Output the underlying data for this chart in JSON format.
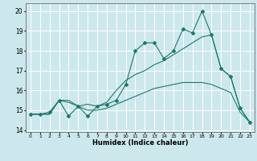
{
  "xlabel": "Humidex (Indice chaleur)",
  "ylabel": "",
  "bg_color": "#cde8ec",
  "grid_color": "#ffffff",
  "line_color": "#1a7a6e",
  "xlim": [
    -0.5,
    23.5
  ],
  "ylim": [
    13.9,
    20.4
  ],
  "yticks": [
    14,
    15,
    16,
    17,
    18,
    19,
    20
  ],
  "xticks": [
    0,
    1,
    2,
    3,
    4,
    5,
    6,
    7,
    8,
    9,
    10,
    11,
    12,
    13,
    14,
    15,
    16,
    17,
    18,
    19,
    20,
    21,
    22,
    23
  ],
  "series1_x": [
    0,
    1,
    2,
    3,
    4,
    5,
    6,
    7,
    8,
    9,
    10,
    11,
    12,
    13,
    14,
    15,
    16,
    17,
    18,
    19,
    20,
    21,
    22,
    23
  ],
  "series1_y": [
    14.8,
    14.8,
    14.9,
    15.5,
    14.7,
    15.2,
    14.7,
    15.2,
    15.3,
    15.5,
    16.3,
    18.0,
    18.4,
    18.4,
    17.6,
    18.0,
    19.1,
    18.9,
    20.0,
    18.8,
    17.1,
    16.7,
    15.1,
    14.4
  ],
  "series2_x": [
    0,
    1,
    2,
    3,
    4,
    5,
    6,
    7,
    8,
    9,
    10,
    11,
    12,
    13,
    14,
    15,
    16,
    17,
    18,
    19,
    20,
    21,
    22,
    23
  ],
  "series2_y": [
    14.8,
    14.8,
    14.8,
    15.5,
    15.5,
    15.2,
    15.3,
    15.2,
    15.4,
    16.0,
    16.5,
    16.8,
    17.0,
    17.3,
    17.5,
    17.8,
    18.1,
    18.4,
    18.7,
    18.8,
    17.1,
    16.7,
    15.1,
    14.4
  ],
  "series3_x": [
    0,
    1,
    2,
    3,
    4,
    5,
    6,
    7,
    8,
    9,
    10,
    11,
    12,
    13,
    14,
    15,
    16,
    17,
    18,
    19,
    20,
    21,
    22,
    23
  ],
  "series3_y": [
    14.8,
    14.8,
    14.8,
    15.5,
    15.4,
    15.2,
    15.0,
    15.0,
    15.1,
    15.3,
    15.5,
    15.7,
    15.9,
    16.1,
    16.2,
    16.3,
    16.4,
    16.4,
    16.4,
    16.3,
    16.1,
    15.9,
    14.9,
    14.4
  ]
}
